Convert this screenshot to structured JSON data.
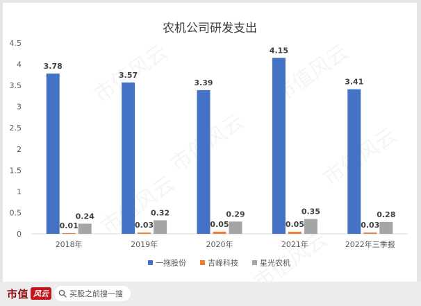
{
  "chart_data": {
    "type": "bar",
    "title": "农机公司研发支出",
    "categories": [
      "2018年",
      "2019年",
      "2020年",
      "2021年",
      "2022年三季报"
    ],
    "series": [
      {
        "name": "一拖股份",
        "values": [
          3.78,
          3.57,
          3.39,
          4.15,
          3.41
        ],
        "color": "#4472c4"
      },
      {
        "name": "吉峰科技",
        "values": [
          0.01,
          0.03,
          0.05,
          0.05,
          0.03
        ],
        "color": "#ed7d31"
      },
      {
        "name": "星光农机",
        "values": [
          0.24,
          0.32,
          0.29,
          0.35,
          0.28
        ],
        "color": "#a5a5a5"
      }
    ],
    "data_labels": [
      [
        "3.78",
        "3.57",
        "3.39",
        "4.15",
        "3.41"
      ],
      [
        "0.01",
        "0.03",
        "0.05",
        "0.05",
        "0.03"
      ],
      [
        "0.24",
        "0.32",
        "0.29",
        "0.35",
        "0.28"
      ]
    ],
    "ylim": [
      0,
      4.5
    ],
    "yticks": [
      0,
      0.5,
      1,
      1.5,
      2,
      2.5,
      3,
      3.5,
      4,
      4.5
    ],
    "ytick_labels": [
      "0",
      "0.5",
      "1",
      "1.5",
      "2",
      "2.5",
      "3",
      "3.5",
      "4",
      "4.5"
    ],
    "xlabel": "",
    "ylabel": "",
    "grid": false,
    "legend_position": "bottom"
  },
  "watermark": "市值风云",
  "footer": {
    "brand": "市值",
    "brand_seal": "风云",
    "search_text": "买股之前搜一搜",
    "search_icon": "search-icon"
  },
  "colors": {
    "axis": "#d9d9d9",
    "text": "#595959",
    "label": "#404040",
    "brand": "#8b0d12",
    "seal": "#c4161c"
  }
}
